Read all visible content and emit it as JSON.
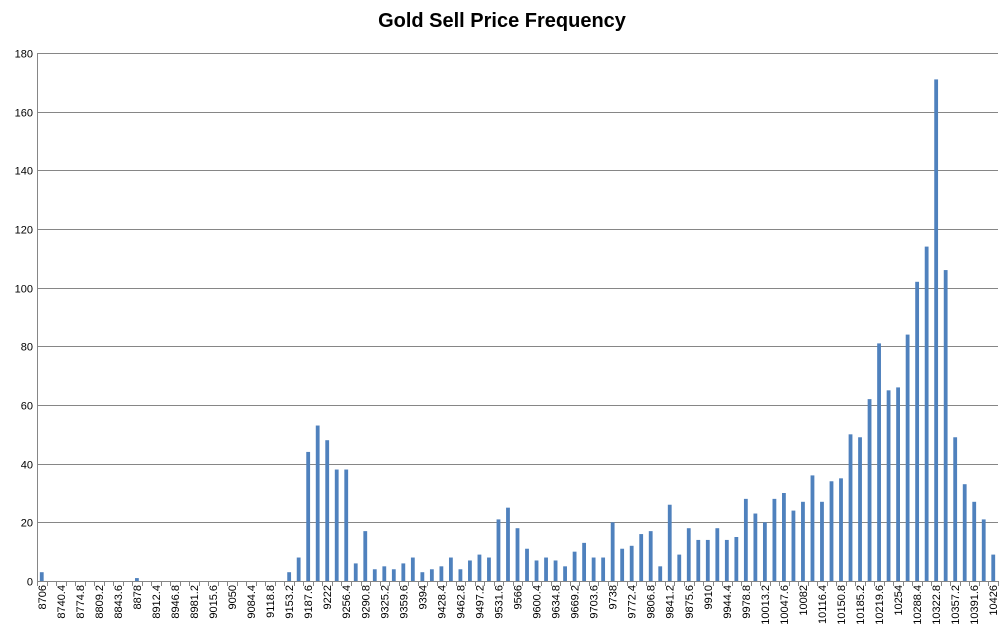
{
  "chart_data": {
    "type": "bar",
    "title": "Gold Sell Price Frequency",
    "xlabel": "",
    "ylabel": "",
    "ylim": [
      0,
      180
    ],
    "yticks": [
      0,
      20,
      40,
      60,
      80,
      100,
      120,
      140,
      160,
      180
    ],
    "grid": "horizontal",
    "legend": "none",
    "bar_color": "#4F81BD",
    "grid_color": "#868686",
    "categories": [
      "8706",
      "8723.2",
      "8740.4",
      "8757.6",
      "8774.8",
      "8792",
      "8809.2",
      "8826.4",
      "8843.6",
      "8860.8",
      "8878",
      "8895.2",
      "8912.4",
      "8929.6",
      "8946.8",
      "8964",
      "8981.2",
      "8998.4",
      "9015.6",
      "9032.8",
      "9050",
      "9067.2",
      "9084.4",
      "9101.6",
      "9118.8",
      "9136",
      "9153.2",
      "9170.4",
      "9187.6",
      "9204.8",
      "9222",
      "9239.2",
      "9256.4",
      "9273.6",
      "9290.8",
      "9308",
      "9325.2",
      "9342.4",
      "9359.6",
      "9376.8",
      "9394",
      "9411.2",
      "9428.4",
      "9445.6",
      "9462.8",
      "9480",
      "9497.2",
      "9514.4",
      "9531.6",
      "9548.8",
      "9566",
      "9583.2",
      "9600.4",
      "9617.6",
      "9634.8",
      "9652",
      "9669.2",
      "9686.4",
      "9703.6",
      "9720.8",
      "9738",
      "9755.2",
      "9772.4",
      "9789.6",
      "9806.8",
      "9824",
      "9841.2",
      "9858.4",
      "9875.6",
      "9892.8",
      "9910",
      "9927.2",
      "9944.4",
      "9961.6",
      "9978.8",
      "9996",
      "10013.2",
      "10030.4",
      "10047.6",
      "10064.8",
      "10082",
      "10099.2",
      "10116.4",
      "10133.6",
      "10150.8",
      "10168",
      "10185.2",
      "10202.4",
      "10219.6",
      "10236.8",
      "10254",
      "10271.2",
      "10288.4",
      "10305.6",
      "10322.8",
      "10340",
      "10357.2",
      "10374.4",
      "10391.6",
      "10408.8",
      "10426"
    ],
    "tick_labels_shown": [
      "8706",
      "8740.4",
      "8774.8",
      "8809.2",
      "8843.6",
      "8878",
      "8912.4",
      "8946.8",
      "8981.2",
      "9015.6",
      "9050",
      "9084.4",
      "9118.8",
      "9153.2",
      "9187.6",
      "9222",
      "9256.4",
      "9290.8",
      "9325.2",
      "9359.6",
      "9394",
      "9428.4",
      "9462.8",
      "9497.2",
      "9531.6",
      "9566",
      "9600.4",
      "9634.8",
      "9669.2",
      "9703.6",
      "9738",
      "9772.4",
      "9806.8",
      "9841.2",
      "9875.6",
      "9910",
      "9944.4",
      "9978.8",
      "10013.2",
      "10047.6",
      "10082",
      "10116.4",
      "10150.8",
      "10185.2",
      "10219.6",
      "10254",
      "10288.4",
      "10322.8",
      "10357.2",
      "10391.6",
      "10426"
    ],
    "values": [
      3,
      0,
      0,
      0,
      0,
      0,
      0,
      0,
      0,
      0,
      1,
      0,
      0,
      0,
      0,
      0,
      0,
      0,
      0,
      0,
      0,
      0,
      0,
      0,
      0,
      0,
      3,
      8,
      44,
      53,
      48,
      38,
      38,
      6,
      17,
      4,
      5,
      4,
      6,
      8,
      3,
      4,
      5,
      8,
      4,
      7,
      9,
      8,
      21,
      25,
      18,
      11,
      7,
      8,
      7,
      5,
      10,
      13,
      8,
      8,
      20,
      11,
      12,
      16,
      17,
      5,
      26,
      9,
      18,
      14,
      14,
      18,
      14,
      15,
      28,
      23,
      20,
      28,
      30,
      24,
      27,
      36,
      27,
      34,
      35,
      50,
      49,
      62,
      81,
      65,
      66,
      84,
      102,
      114,
      171,
      106,
      49,
      33,
      27,
      21,
      9
    ]
  }
}
